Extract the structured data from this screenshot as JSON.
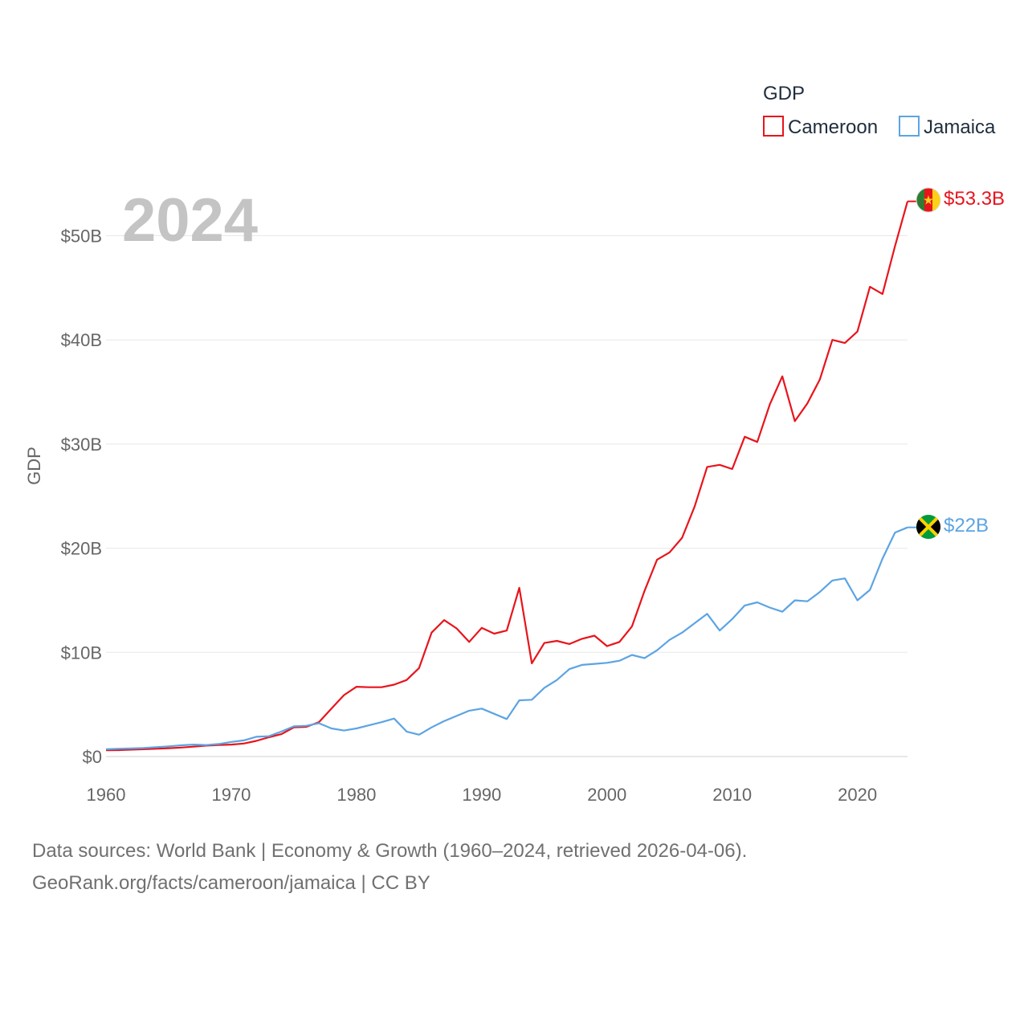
{
  "chart_data": {
    "type": "line",
    "big_year": "2024",
    "legend": {
      "title": "GDP",
      "position": "top-right"
    },
    "ylabel": "GDP",
    "ylim": [
      0,
      55
    ],
    "yticks": [
      {
        "value": 0,
        "label": "$0"
      },
      {
        "value": 10,
        "label": "$10B"
      },
      {
        "value": 20,
        "label": "$20B"
      },
      {
        "value": 30,
        "label": "$30B"
      },
      {
        "value": 40,
        "label": "$40B"
      },
      {
        "value": 50,
        "label": "$50B"
      }
    ],
    "xlim": [
      1960,
      2024
    ],
    "xticks": [
      {
        "value": 1960,
        "label": "1960"
      },
      {
        "value": 1970,
        "label": "1970"
      },
      {
        "value": 1980,
        "label": "1980"
      },
      {
        "value": 1990,
        "label": "1990"
      },
      {
        "value": 2000,
        "label": "2000"
      },
      {
        "value": 2010,
        "label": "2010"
      },
      {
        "value": 2020,
        "label": "2020"
      }
    ],
    "grid": true,
    "x": [
      1960,
      1961,
      1962,
      1963,
      1964,
      1965,
      1966,
      1967,
      1968,
      1969,
      1970,
      1971,
      1972,
      1973,
      1974,
      1975,
      1976,
      1977,
      1978,
      1979,
      1980,
      1981,
      1982,
      1983,
      1984,
      1985,
      1986,
      1987,
      1988,
      1989,
      1990,
      1991,
      1992,
      1993,
      1994,
      1995,
      1996,
      1997,
      1998,
      1999,
      2000,
      2001,
      2002,
      2003,
      2004,
      2005,
      2006,
      2007,
      2008,
      2009,
      2010,
      2011,
      2012,
      2013,
      2014,
      2015,
      2016,
      2017,
      2018,
      2019,
      2020,
      2021,
      2022,
      2023,
      2024
    ],
    "series": [
      {
        "name": "Cameroon",
        "color": "#e8141c",
        "end_label": "$53.3B",
        "flag": "cameroon-flag-icon",
        "values": [
          0.6,
          0.62,
          0.66,
          0.7,
          0.75,
          0.8,
          0.86,
          0.95,
          1.05,
          1.1,
          1.15,
          1.25,
          1.5,
          1.85,
          2.15,
          2.8,
          2.85,
          3.3,
          4.6,
          5.9,
          6.7,
          6.65,
          6.65,
          6.9,
          7.35,
          8.5,
          11.9,
          13.1,
          12.3,
          11.0,
          12.35,
          11.8,
          12.1,
          16.2,
          8.95,
          10.9,
          11.1,
          10.8,
          11.3,
          11.6,
          10.6,
          11.0,
          12.5,
          15.9,
          18.9,
          19.6,
          21.0,
          24.0,
          27.8,
          28.0,
          27.6,
          30.7,
          30.2,
          33.8,
          36.5,
          32.2,
          33.9,
          36.2,
          40.0,
          39.7,
          40.8,
          45.1,
          44.4,
          49.0,
          53.3
        ]
      },
      {
        "name": "Jamaica",
        "color": "#5ca4e3",
        "end_label": "$22B",
        "flag": "jamaica-flag-icon",
        "values": [
          0.7,
          0.75,
          0.78,
          0.82,
          0.9,
          0.98,
          1.08,
          1.15,
          1.1,
          1.2,
          1.4,
          1.55,
          1.9,
          1.95,
          2.4,
          2.9,
          2.95,
          3.2,
          2.7,
          2.5,
          2.7,
          3.0,
          3.3,
          3.65,
          2.4,
          2.1,
          2.8,
          3.4,
          3.9,
          4.4,
          4.6,
          4.1,
          3.6,
          5.4,
          5.45,
          6.6,
          7.35,
          8.4,
          8.8,
          8.9,
          9.0,
          9.2,
          9.75,
          9.45,
          10.2,
          11.2,
          11.9,
          12.8,
          13.7,
          12.1,
          13.2,
          14.5,
          14.8,
          14.3,
          13.9,
          15.0,
          14.9,
          15.8,
          16.9,
          17.1,
          15.0,
          16.0,
          19.0,
          21.5,
          22.0
        ]
      }
    ]
  },
  "footer": {
    "line1": "Data sources: World Bank | Economy & Growth (1960–2024, retrieved 2026-04-06).",
    "line2": "GeoRank.org/facts/cameroon/jamaica | CC BY"
  }
}
